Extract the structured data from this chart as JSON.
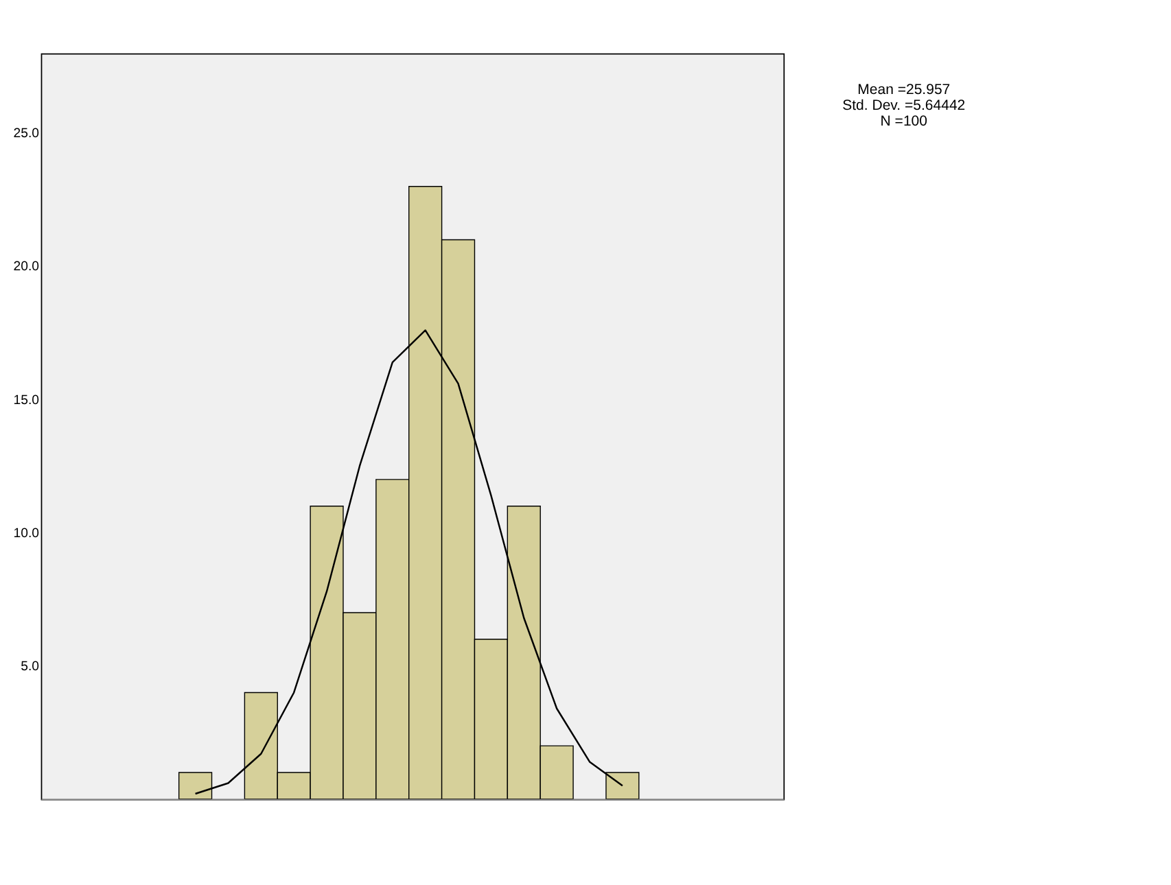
{
  "chart_data": {
    "type": "bar",
    "categories": [
      null,
      null,
      null,
      null,
      null,
      null,
      null,
      null,
      null,
      null,
      null,
      null,
      null,
      null
    ],
    "series": [
      {
        "color": "#d6d09a",
        "values": [
          1,
          0,
          4,
          1,
          11,
          7,
          12,
          23,
          21,
          6,
          11,
          2,
          0,
          1
        ]
      },
      {
        "type": "line",
        "color": "#000000",
        "values": [
          0.2,
          0.6,
          1.7,
          4.0,
          7.8,
          12.5,
          16.4,
          17.6,
          15.6,
          11.4,
          6.8,
          3.4,
          1.4,
          0.5
        ]
      }
    ],
    "ylim": [
      0,
      28
    ],
    "yticks": [
      {
        "value": 5,
        "label": "5.0"
      },
      {
        "value": 10,
        "label": "10.0"
      },
      {
        "value": 15,
        "label": "15.0"
      },
      {
        "value": 20,
        "label": "20.0"
      },
      {
        "value": 25,
        "label": "25.0"
      }
    ],
    "tick_labels": "y",
    "grid": false,
    "annotations": [
      "Mean =25.957",
      "Std. Dev. =5.64442",
      "N =100"
    ]
  }
}
